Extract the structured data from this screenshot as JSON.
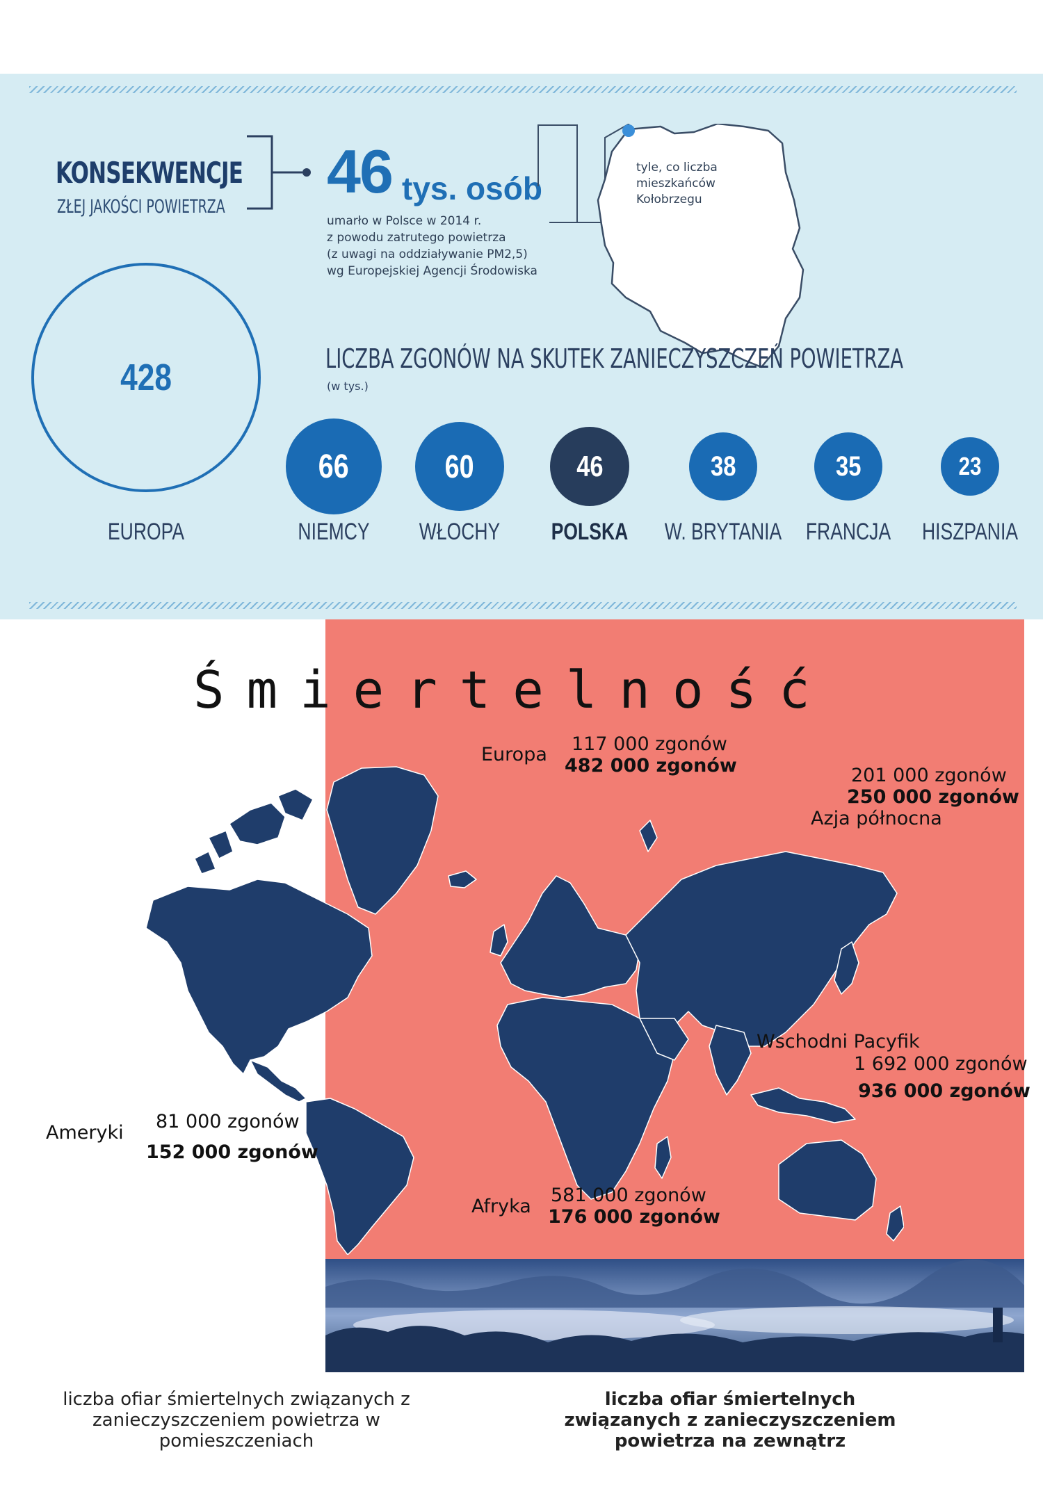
{
  "header": {
    "title": "KONSEKWENCJE",
    "subtitle": "ZŁEJ JAKOŚCI POWIETRZA",
    "big_number": "46",
    "big_unit": "tys. osób",
    "description": [
      "umarło w Polsce w 2014 r.",
      "z powodu zatrutego powietrza",
      "(z uwagi na oddziaływanie PM2,5)",
      "wg Europejskiej Agencji Środowiska"
    ],
    "poland_note": [
      "tyle, co liczba",
      "mieszkańców",
      "Kołobrzegu"
    ]
  },
  "deaths": {
    "title": "LICZBA ZGONÓW NA SKUTEK ZANIECZYSZCZEŃ POWIETRZA",
    "unit": "(w tys.)",
    "europe": {
      "value": "428",
      "label": "EUROPA"
    },
    "countries": [
      {
        "value": "66",
        "label": "NIEMCY",
        "color": "#1a6bb4"
      },
      {
        "value": "60",
        "label": "WŁOCHY",
        "color": "#1a6bb4"
      },
      {
        "value": "46",
        "label": "POLSKA",
        "color": "#273d5c"
      },
      {
        "value": "38",
        "label": "W. BRYTANIA",
        "color": "#1a6bb4"
      },
      {
        "value": "35",
        "label": "FRANCJA",
        "color": "#1a6bb4"
      },
      {
        "value": "23",
        "label": "HISZPANIA",
        "color": "#1a6bb4"
      }
    ]
  },
  "mortality": {
    "heading": "Śmiertelność",
    "regions": {
      "europe": {
        "name": "Europa",
        "indoor": "117 000 zgonów",
        "outdoor": "482 000 zgonów"
      },
      "north_asia": {
        "name": "Azja północna",
        "indoor": "201 000 zgonów",
        "outdoor": "250 000 zgonów"
      },
      "pacific": {
        "name": "Wschodni Pacyfik",
        "indoor": "1 692 000 zgonów",
        "outdoor": "936 000 zgonów"
      },
      "americas": {
        "name": "Ameryki",
        "indoor": "81 000 zgonów",
        "outdoor": "152 000 zgonów"
      },
      "africa": {
        "name": "Afryka",
        "indoor": "581 000 zgonów",
        "outdoor": "176 000 zgonów"
      }
    },
    "caption_indoor": "liczba ofiar śmiertelnych związanych z zanieczyszczeniem powietrza w pomieszczeniach",
    "caption_outdoor": "liczba ofiar śmiertelnych związanych z zanieczyszczeniem powietrza na zewnątrz"
  },
  "colors": {
    "panel": "#d6ecf3",
    "accent_blue": "#1f6fb5",
    "salmon": "#f27d73",
    "map": "#1f3d6b"
  }
}
